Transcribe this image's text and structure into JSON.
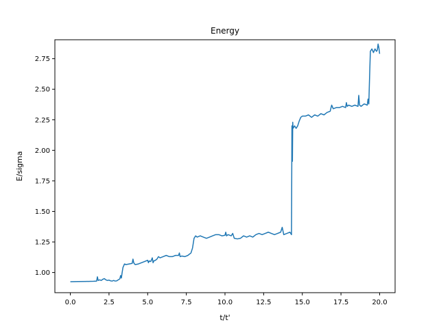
{
  "chart_data": {
    "type": "line",
    "title": "Energy",
    "xlabel": "t/t'",
    "ylabel": "E/sigma",
    "xlim": [
      -1.0,
      21.0
    ],
    "ylim": [
      0.835,
      2.905
    ],
    "xticks": [
      0.0,
      2.5,
      5.0,
      7.5,
      10.0,
      12.5,
      15.0,
      17.5,
      20.0
    ],
    "xtick_labels": [
      "0.0",
      "2.5",
      "5.0",
      "7.5",
      "10.0",
      "12.5",
      "15.0",
      "17.5",
      "20.0"
    ],
    "yticks": [
      1.0,
      1.25,
      1.5,
      1.75,
      2.0,
      2.25,
      2.5,
      2.75
    ],
    "ytick_labels": [
      "1.00",
      "1.25",
      "1.50",
      "1.75",
      "2.00",
      "2.25",
      "2.50",
      "2.75"
    ],
    "grid": false,
    "color": "#1f77b4",
    "series": [
      {
        "x": [
          0.0,
          0.5,
          1.0,
          1.5,
          1.7,
          1.75,
          1.8,
          1.9,
          2.0,
          2.1,
          2.2,
          2.3,
          2.4,
          2.5,
          2.6,
          2.7,
          2.8,
          2.9,
          3.0,
          3.1,
          3.2,
          3.25,
          3.3,
          3.35,
          3.4,
          3.5,
          3.6,
          3.8,
          4.0,
          4.05,
          4.1,
          4.15,
          4.2,
          4.4,
          4.6,
          4.8,
          5.0,
          5.05,
          5.1,
          5.2,
          5.3,
          5.35,
          5.4,
          5.5,
          5.6,
          5.7,
          5.8,
          6.0,
          6.2,
          6.4,
          6.6,
          6.8,
          7.0,
          7.05,
          7.1,
          7.2,
          7.4,
          7.6,
          7.8,
          7.9,
          8.0,
          8.1,
          8.2,
          8.4,
          8.6,
          8.8,
          9.0,
          9.2,
          9.4,
          9.6,
          9.8,
          10.0,
          10.05,
          10.1,
          10.2,
          10.4,
          10.5,
          10.6,
          10.8,
          11.0,
          11.2,
          11.4,
          11.6,
          11.8,
          12.0,
          12.2,
          12.4,
          12.6,
          12.8,
          13.0,
          13.2,
          13.4,
          13.6,
          13.7,
          13.8,
          14.0,
          14.2,
          14.3,
          14.33,
          14.36,
          14.38,
          14.4,
          14.45,
          14.5,
          14.6,
          14.7,
          14.8,
          14.9,
          15.0,
          15.2,
          15.4,
          15.6,
          15.8,
          16.0,
          16.2,
          16.4,
          16.6,
          16.8,
          16.9,
          17.0,
          17.2,
          17.4,
          17.6,
          17.8,
          17.85,
          17.9,
          18.0,
          18.2,
          18.4,
          18.6,
          18.65,
          18.7,
          18.8,
          19.0,
          19.2,
          19.25,
          19.3,
          19.35,
          19.4,
          19.45,
          19.5,
          19.6,
          19.7,
          19.8,
          19.85,
          19.9,
          19.95,
          20.0
        ],
        "y": [
          0.925,
          0.926,
          0.927,
          0.928,
          0.93,
          0.965,
          0.935,
          0.94,
          0.935,
          0.945,
          0.95,
          0.94,
          0.935,
          0.938,
          0.932,
          0.93,
          0.935,
          0.93,
          0.932,
          0.94,
          0.948,
          0.975,
          0.955,
          1.0,
          1.04,
          1.07,
          1.065,
          1.07,
          1.075,
          1.11,
          1.08,
          1.07,
          1.065,
          1.07,
          1.08,
          1.09,
          1.1,
          1.08,
          1.095,
          1.09,
          1.12,
          1.08,
          1.095,
          1.1,
          1.11,
          1.13,
          1.12,
          1.13,
          1.14,
          1.13,
          1.13,
          1.14,
          1.14,
          1.16,
          1.13,
          1.135,
          1.13,
          1.14,
          1.16,
          1.2,
          1.28,
          1.3,
          1.29,
          1.3,
          1.29,
          1.28,
          1.29,
          1.3,
          1.31,
          1.31,
          1.3,
          1.305,
          1.33,
          1.3,
          1.31,
          1.3,
          1.32,
          1.28,
          1.275,
          1.28,
          1.3,
          1.29,
          1.3,
          1.29,
          1.31,
          1.32,
          1.31,
          1.32,
          1.33,
          1.32,
          1.31,
          1.32,
          1.33,
          1.37,
          1.31,
          1.32,
          1.33,
          1.31,
          2.2,
          1.91,
          2.23,
          2.18,
          2.19,
          2.2,
          2.18,
          2.2,
          2.24,
          2.27,
          2.28,
          2.28,
          2.29,
          2.27,
          2.29,
          2.28,
          2.3,
          2.29,
          2.31,
          2.32,
          2.37,
          2.34,
          2.35,
          2.35,
          2.36,
          2.35,
          2.39,
          2.36,
          2.37,
          2.36,
          2.37,
          2.36,
          2.45,
          2.37,
          2.36,
          2.38,
          2.37,
          2.42,
          2.38,
          2.6,
          2.81,
          2.82,
          2.83,
          2.8,
          2.83,
          2.81,
          2.82,
          2.87,
          2.84,
          2.79
        ]
      }
    ]
  }
}
